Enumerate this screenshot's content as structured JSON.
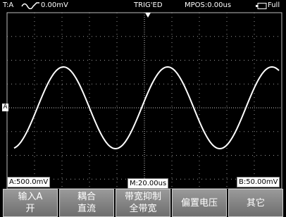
{
  "top_bar": {
    "channel": "T:A",
    "trigger_level": "0.00mV",
    "status": "TRIG'ED",
    "mpos": "MPOS:0.00us",
    "power": "Full"
  },
  "screen": {
    "channel_marker": "A",
    "ch_a_scale": "A:500.0mV",
    "timebase": "M:20.00us",
    "ch_b_scale": "B:50.00mV"
  },
  "menu": [
    {
      "line1": "输入A",
      "line2": "开"
    },
    {
      "line1": "耦合",
      "line2": "直流"
    },
    {
      "line1": "带宽抑制",
      "line2": "全带宽"
    },
    {
      "line1": "偏置电压"
    },
    {
      "line1": "其它"
    }
  ]
}
